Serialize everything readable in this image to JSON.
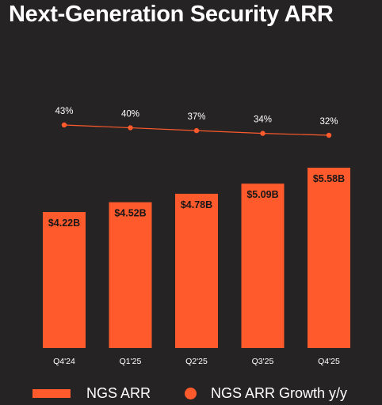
{
  "title": "Next-Generation Security ARR",
  "colors": {
    "background": "#262324",
    "accent": "#ff5a2c",
    "text": "#ffffff"
  },
  "legend": {
    "bar_label": "NGS ARR",
    "line_label": "NGS ARR Growth y/y"
  },
  "chart_data": {
    "type": "bar",
    "categories": [
      "Q4'24",
      "Q1'25",
      "Q2'25",
      "Q3'25",
      "Q4'25"
    ],
    "series": [
      {
        "name": "NGS ARR",
        "type": "bar",
        "values": [
          4.22,
          4.52,
          4.78,
          5.09,
          5.58
        ],
        "labels": [
          "$4.22B",
          "$4.52B",
          "$4.78B",
          "$5.09B",
          "$5.58B"
        ]
      },
      {
        "name": "NGS ARR Growth y/y",
        "type": "line",
        "values": [
          43,
          40,
          37,
          34,
          32
        ],
        "labels": [
          "43%",
          "40%",
          "37%",
          "34%",
          "32%"
        ]
      }
    ],
    "legend_position": "bottom",
    "grid": false
  }
}
